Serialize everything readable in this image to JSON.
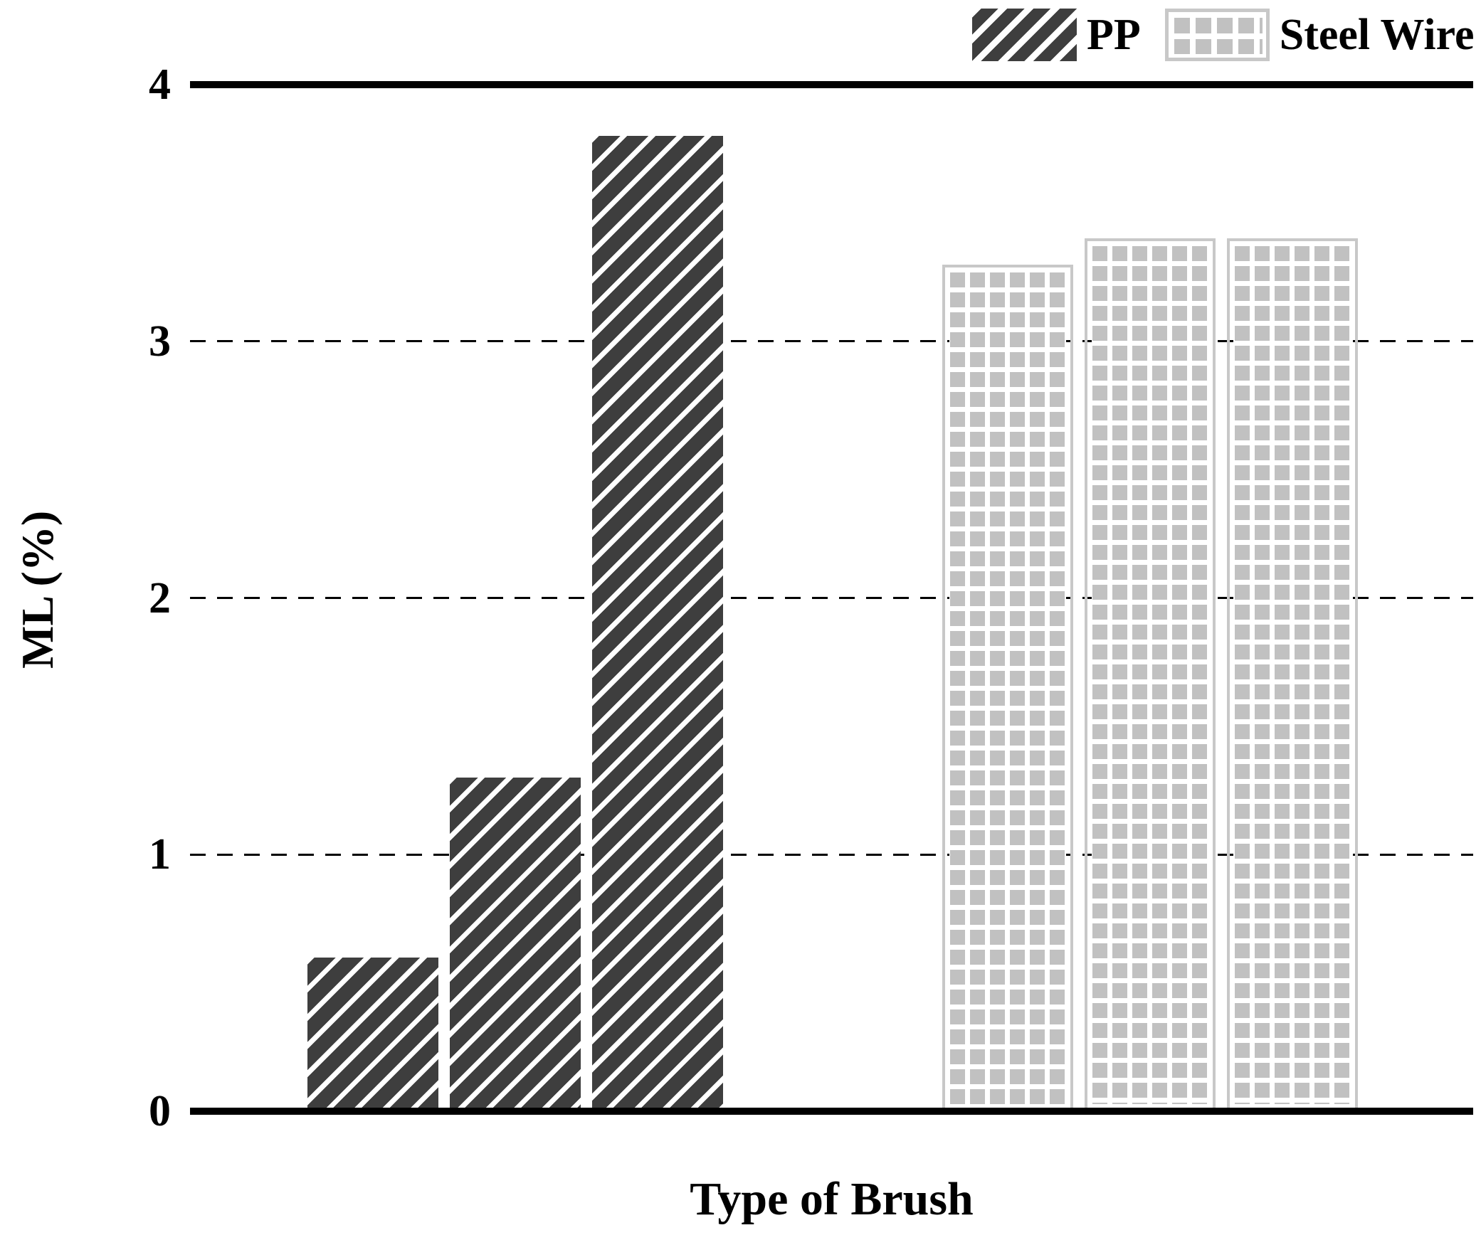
{
  "figure": {
    "background": "#ffffff"
  },
  "axes": {
    "ylabel": "ML (%)",
    "xlabel": "Type of Brush",
    "ylim": [
      0,
      4
    ],
    "yticks": [
      0,
      1,
      2,
      3,
      4
    ],
    "gridline_ticks": [
      1,
      2,
      3
    ],
    "axis_color": "#000000"
  },
  "legend": {
    "items": [
      {
        "label": "PP",
        "pattern": "diagonal-stripes",
        "fill": "#3e3e3e"
      },
      {
        "label": "Steel Wire",
        "pattern": "square-grid",
        "fill": "#c1c1c1"
      }
    ]
  },
  "chart_data": {
    "type": "bar",
    "title": "",
    "xlabel": "Type of Brush",
    "ylabel": "ML (%)",
    "ylim": [
      0,
      4
    ],
    "yticks": [
      0,
      1,
      2,
      3,
      4
    ],
    "grid": "horizontal dashed lines at 1, 2 and 3; solid thick lines at 0 and 4",
    "legend_position": "top-right above plot area",
    "categories": [
      "",
      "",
      ""
    ],
    "series": [
      {
        "name": "PP",
        "values": [
          0.6,
          1.3,
          3.8
        ],
        "fill": "#3e3e3e",
        "pattern": "white diagonal stripes"
      },
      {
        "name": "Steel Wire",
        "values": [
          3.3,
          3.4,
          3.4
        ],
        "fill": "#c1c1c1",
        "pattern": "gray square grid on white"
      }
    ]
  }
}
